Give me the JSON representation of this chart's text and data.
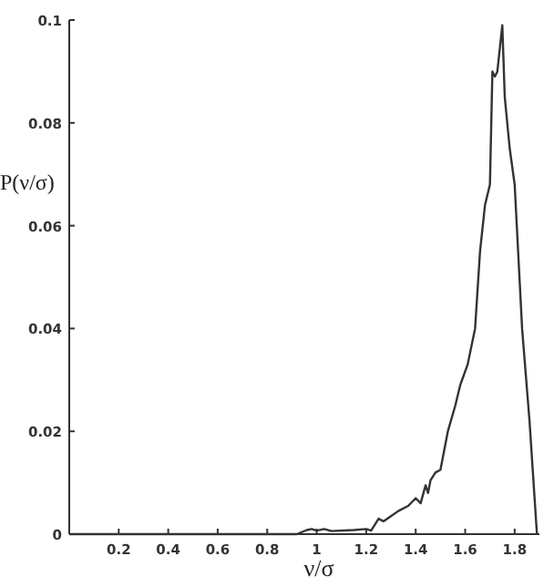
{
  "chart_data": {
    "type": "line",
    "xlabel": "ν/σ",
    "ylabel": "P(ν/σ)",
    "xlim": [
      0,
      1.9
    ],
    "ylim": [
      0,
      0.1
    ],
    "xticks": [
      0.2,
      0.4,
      0.6,
      0.8,
      1,
      1.2,
      1.4,
      1.6,
      1.8
    ],
    "yticks": [
      0,
      0.02,
      0.04,
      0.06,
      0.08,
      0.1
    ],
    "marker": "none",
    "line_style": "solid",
    "series": [
      {
        "color": "#333333",
        "x": [
          0,
          0.92,
          0.96,
          0.98,
          1.0,
          1.03,
          1.06,
          1.15,
          1.2,
          1.22,
          1.25,
          1.27,
          1.3,
          1.33,
          1.37,
          1.4,
          1.42,
          1.44,
          1.45,
          1.46,
          1.48,
          1.5,
          1.53,
          1.56,
          1.58,
          1.61,
          1.64,
          1.66,
          1.68,
          1.7,
          1.71,
          1.72,
          1.73,
          1.75,
          1.76,
          1.78,
          1.8,
          1.83,
          1.86,
          1.89
        ],
        "values": [
          0,
          0,
          0.0008,
          0.001,
          0.0007,
          0.001,
          0.0006,
          0.0008,
          0.001,
          0.0007,
          0.003,
          0.0025,
          0.0035,
          0.0045,
          0.0055,
          0.007,
          0.006,
          0.0095,
          0.008,
          0.0105,
          0.012,
          0.0125,
          0.02,
          0.025,
          0.029,
          0.033,
          0.04,
          0.055,
          0.064,
          0.068,
          0.09,
          0.089,
          0.09,
          0.099,
          0.085,
          0.075,
          0.068,
          0.04,
          0.022,
          0.0
        ]
      }
    ]
  }
}
